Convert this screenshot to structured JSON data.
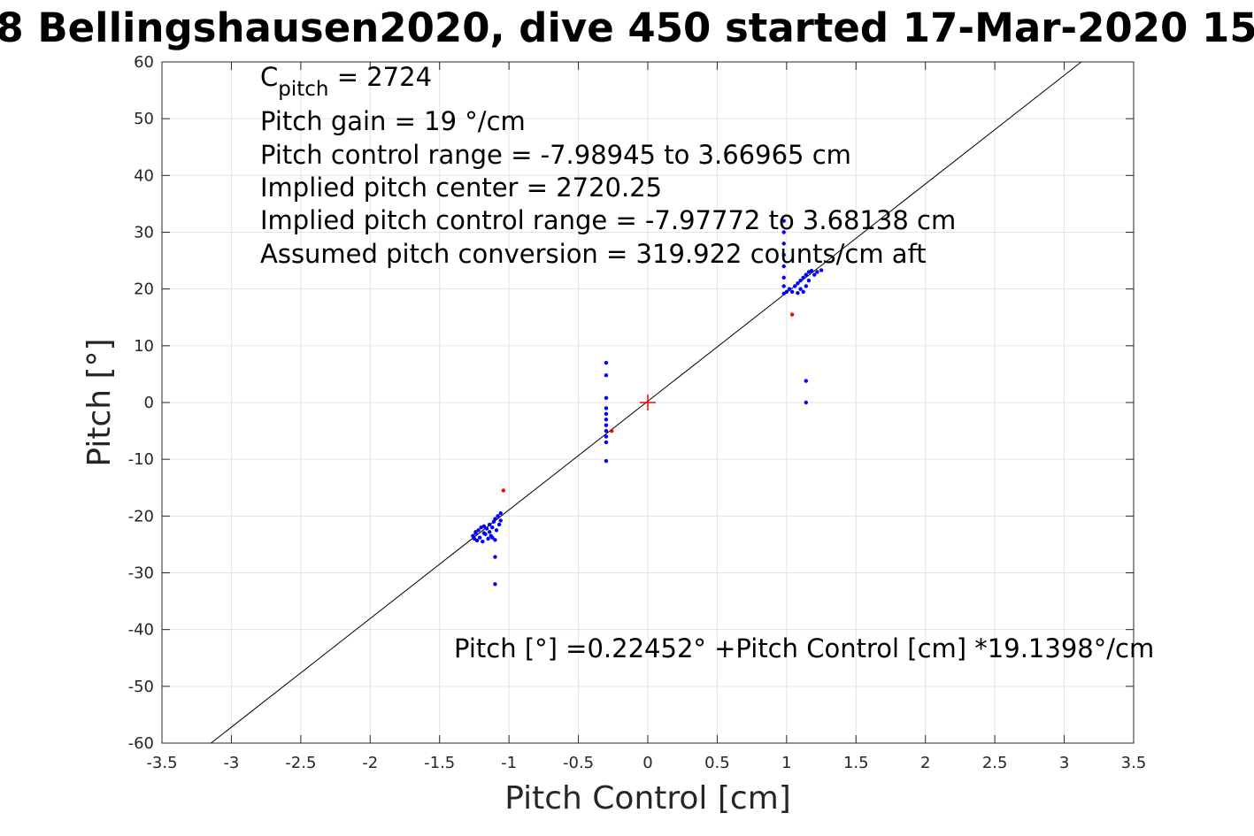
{
  "chart_data": {
    "type": "scatter",
    "title": "8 Bellingshausen2020, dive 450 started 17-Mar-2020 15",
    "xlabel": "Pitch Control [cm]",
    "ylabel": "Pitch [°]",
    "xlim": [
      -3.5,
      3.5
    ],
    "ylim": [
      -60,
      60
    ],
    "xticks": [
      -3.5,
      -3,
      -2.5,
      -2,
      -1.5,
      -1,
      -0.5,
      0,
      0.5,
      1,
      1.5,
      2,
      2.5,
      3,
      3.5
    ],
    "yticks": [
      -60,
      -50,
      -40,
      -30,
      -20,
      -10,
      0,
      10,
      20,
      30,
      40,
      50,
      60
    ],
    "xtick_labels": [
      "-3.5",
      "-3",
      "-2.5",
      "-2",
      "-1.5",
      "-1",
      "-0.5",
      "0",
      "0.5",
      "1",
      "1.5",
      "2",
      "2.5",
      "3",
      "3.5"
    ],
    "ytick_labels": [
      "-60",
      "-50",
      "-40",
      "-30",
      "-20",
      "-10",
      "0",
      "10",
      "20",
      "30",
      "40",
      "50",
      "60"
    ],
    "grid": true,
    "fit_line": {
      "intercept": 0.22452,
      "slope": 19.1398,
      "color": "#000000"
    },
    "center_marker": {
      "x": 0,
      "y": 0,
      "color": "#ff0000"
    },
    "series": [
      {
        "color": "#0000ff",
        "points": [
          [
            -1.26,
            -23.5
          ],
          [
            -1.25,
            -24.0
          ],
          [
            -1.24,
            -23.0
          ],
          [
            -1.23,
            -24.3
          ],
          [
            -1.22,
            -22.5
          ],
          [
            -1.21,
            -23.8
          ],
          [
            -1.2,
            -22.0
          ],
          [
            -1.19,
            -24.5
          ],
          [
            -1.18,
            -21.8
          ],
          [
            -1.17,
            -23.2
          ],
          [
            -1.16,
            -22.2
          ],
          [
            -1.15,
            -24.0
          ],
          [
            -1.14,
            -21.5
          ],
          [
            -1.13,
            -23.5
          ],
          [
            -1.12,
            -22.0
          ],
          [
            -1.11,
            -21.0
          ],
          [
            -1.1,
            -24.2
          ],
          [
            -1.1,
            -20.5
          ],
          [
            -1.09,
            -22.5
          ],
          [
            -1.08,
            -20.0
          ],
          [
            -1.07,
            -21.5
          ],
          [
            -1.06,
            -19.5
          ],
          [
            -1.06,
            -20.8
          ],
          [
            -1.18,
            -23.0
          ],
          [
            -1.14,
            -22.8
          ],
          [
            -1.12,
            -23.8
          ],
          [
            -1.24,
            -22.8
          ],
          [
            -1.1,
            -27.2
          ],
          [
            -1.1,
            -32.0
          ],
          [
            -0.3,
            7.0
          ],
          [
            -0.3,
            4.8
          ],
          [
            -0.3,
            0.8
          ],
          [
            -0.3,
            -1.0
          ],
          [
            -0.3,
            -2.0
          ],
          [
            -0.3,
            -3.0
          ],
          [
            -0.3,
            -4.0
          ],
          [
            -0.3,
            -5.0
          ],
          [
            -0.3,
            -6.0
          ],
          [
            -0.3,
            -7.0
          ],
          [
            -0.3,
            -10.3
          ],
          [
            0.98,
            32.0
          ],
          [
            0.98,
            30.0
          ],
          [
            0.98,
            28.0
          ],
          [
            0.98,
            26.0
          ],
          [
            0.98,
            24.0
          ],
          [
            0.98,
            22.0
          ],
          [
            0.98,
            20.5
          ],
          [
            0.98,
            19.2
          ],
          [
            1.0,
            19.5
          ],
          [
            1.02,
            20.0
          ],
          [
            1.04,
            19.5
          ],
          [
            1.06,
            20.5
          ],
          [
            1.08,
            21.0
          ],
          [
            1.08,
            19.3
          ],
          [
            1.1,
            21.5
          ],
          [
            1.1,
            20.0
          ],
          [
            1.12,
            22.0
          ],
          [
            1.12,
            19.5
          ],
          [
            1.14,
            22.5
          ],
          [
            1.14,
            20.5
          ],
          [
            1.16,
            23.0
          ],
          [
            1.16,
            21.5
          ],
          [
            1.18,
            23.2
          ],
          [
            1.2,
            22.5
          ],
          [
            1.22,
            23.0
          ],
          [
            1.25,
            23.3
          ],
          [
            1.14,
            3.8
          ],
          [
            1.14,
            0.0
          ]
        ]
      },
      {
        "color": "#ff0000",
        "points": [
          [
            -1.04,
            -15.5
          ],
          [
            1.04,
            15.5
          ],
          [
            -0.26,
            -5.0
          ]
        ]
      }
    ],
    "annotations": {
      "cpitch_main": "C",
      "cpitch_sub": "pitch",
      "cpitch_value": " = 2724",
      "pitch_gain": "Pitch gain = 19 °/cm",
      "pitch_control_range": "Pitch control range = -7.98945 to 3.66965 cm",
      "implied_center": "Implied pitch center = 2720.25",
      "implied_range": "Implied pitch control range = -7.97772 to 3.68138 cm",
      "assumed_conversion": "Assumed pitch conversion = 319.922 counts/cm aft",
      "fit_equation": "Pitch [°] =0.22452° +Pitch Control [cm] *19.1398°/cm"
    }
  }
}
